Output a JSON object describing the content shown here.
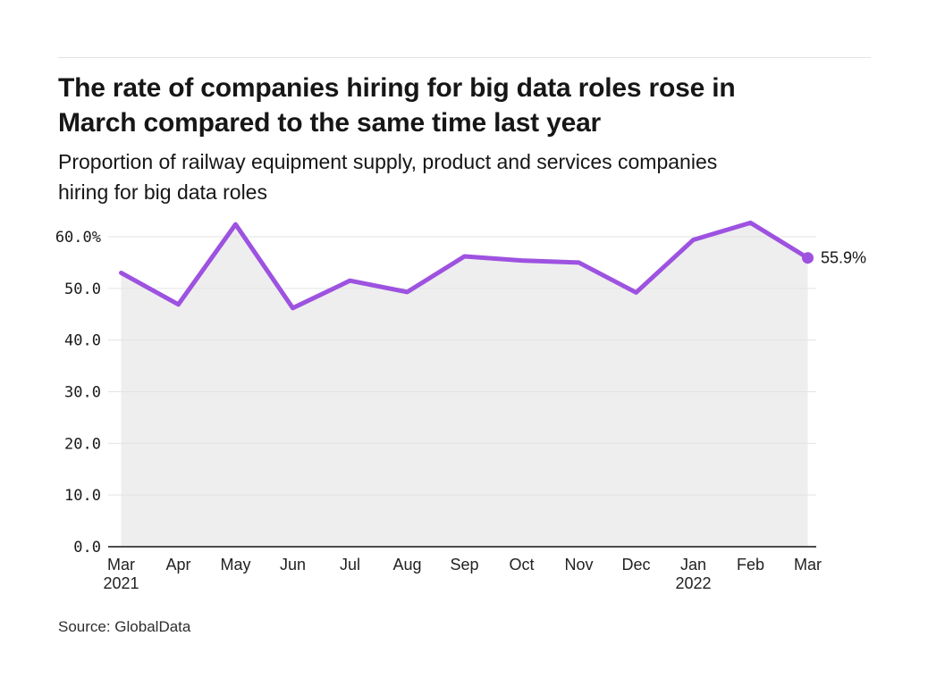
{
  "header": {
    "title_lines": [
      "The rate of companies hiring for big data roles rose in",
      "March compared to the same time last year"
    ],
    "subtitle_lines": [
      "Proportion of railway equipment supply, product and services companies",
      "hiring for big data roles"
    ]
  },
  "chart_data": {
    "type": "line",
    "title": "The rate of companies hiring for big data roles rose in March compared to the same time last year",
    "subtitle": "Proportion of railway equipment supply, product and services companies hiring for big data roles",
    "x": [
      {
        "label": "Mar",
        "year": "2021"
      },
      {
        "label": "Apr"
      },
      {
        "label": "May"
      },
      {
        "label": "Jun"
      },
      {
        "label": "Jul"
      },
      {
        "label": "Aug"
      },
      {
        "label": "Sep"
      },
      {
        "label": "Oct"
      },
      {
        "label": "Nov"
      },
      {
        "label": "Dec"
      },
      {
        "label": "Jan",
        "year": "2022"
      },
      {
        "label": "Feb"
      },
      {
        "label": "Mar"
      }
    ],
    "values": [
      53.0,
      46.9,
      62.4,
      46.2,
      51.5,
      49.3,
      56.2,
      55.4,
      55.0,
      49.2,
      59.4,
      62.7,
      55.9
    ],
    "unit": "%",
    "end_label": "55.9%",
    "y_ticks": [
      {
        "v": 0,
        "label": "0.0"
      },
      {
        "v": 10,
        "label": "10.0"
      },
      {
        "v": 20,
        "label": "20.0"
      },
      {
        "v": 30,
        "label": "30.0"
      },
      {
        "v": 40,
        "label": "40.0"
      },
      {
        "v": 50,
        "label": "50.0"
      },
      {
        "v": 60,
        "label": "60.0%"
      }
    ],
    "ylim": [
      0,
      65
    ],
    "grid": true,
    "legend": "none",
    "area_fill": true,
    "colors": {
      "line": "#9d52e0",
      "area": "#eeeeee",
      "grid": "#e3e3e3",
      "axis": "#4d4d4d",
      "tick_text": "#1a1a1a",
      "end_label_text": "#161616"
    }
  },
  "footer": {
    "source": "Source: GlobalData"
  }
}
